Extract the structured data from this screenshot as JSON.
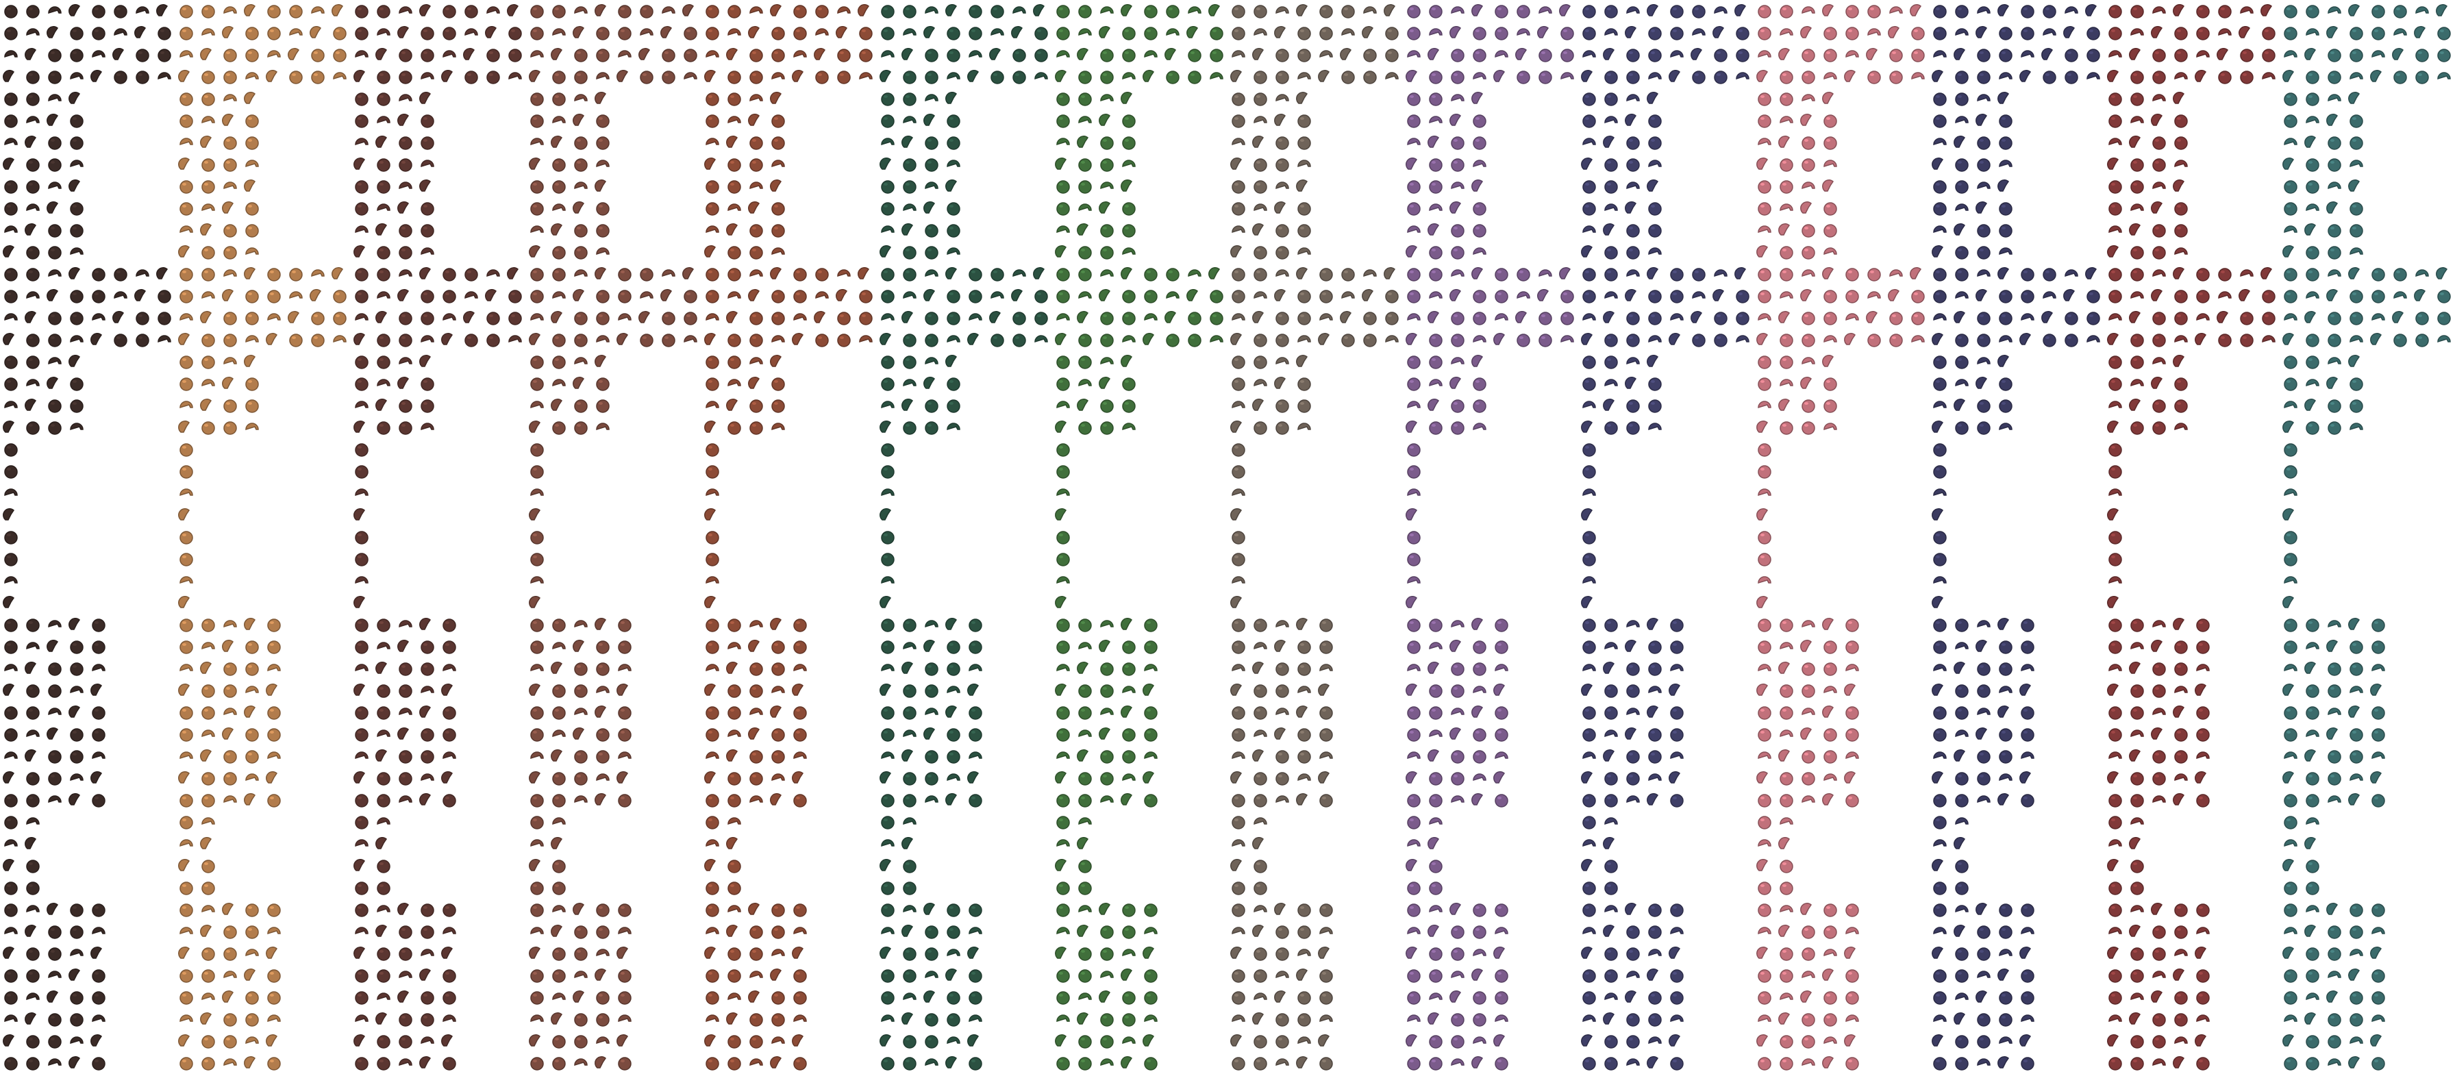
{
  "sprite_sheet": {
    "palettes": [
      "#3b2b27",
      "#b27c4c",
      "#5b3631",
      "#7b4b3f",
      "#8c4b36",
      "#2b5141",
      "#406f3b",
      "#6f6359",
      "#7b5b8b",
      "#3f3f67",
      "#c1717b",
      "#3b3b61",
      "#813939",
      "#3b6b6b"
    ]
  }
}
